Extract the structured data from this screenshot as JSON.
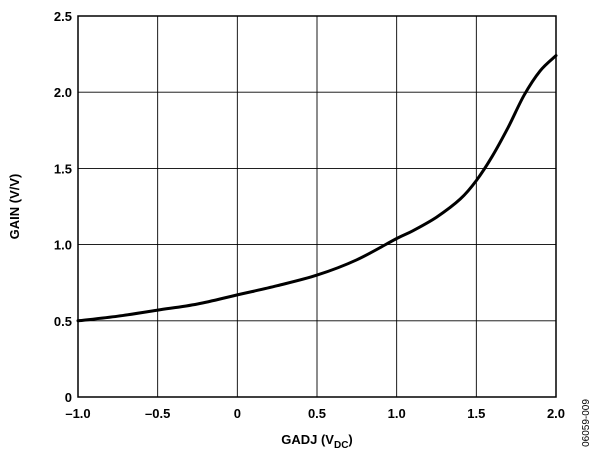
{
  "chart_data": {
    "type": "line",
    "title": "",
    "xlabel": {
      "main": "GADJ (V",
      "sub": "DC",
      "close": ")"
    },
    "ylabel": "GAIN (V/V)",
    "xlim": [
      -1.0,
      2.0
    ],
    "ylim": [
      0,
      2.5
    ],
    "grid": true,
    "legend": "none",
    "xticks": [
      -1.0,
      -0.5,
      0,
      0.5,
      1.0,
      1.5,
      2.0
    ],
    "xtick_labels": [
      "–1.0",
      "–0.5",
      "0",
      "0.5",
      "1.0",
      "1.5",
      "2.0"
    ],
    "yticks": [
      0,
      0.5,
      1.0,
      1.5,
      2.0,
      2.5
    ],
    "ytick_labels": [
      "0",
      "0.5",
      "1.0",
      "1.5",
      "2.0",
      "2.5"
    ],
    "series": [
      {
        "x": [
          -1.0,
          -0.75,
          -0.5,
          -0.25,
          0.0,
          0.25,
          0.5,
          0.75,
          1.0,
          1.1,
          1.25,
          1.4,
          1.5,
          1.6,
          1.7,
          1.8,
          1.9,
          2.0
        ],
        "y": [
          0.5,
          0.53,
          0.57,
          0.61,
          0.67,
          0.73,
          0.8,
          0.9,
          1.04,
          1.09,
          1.18,
          1.3,
          1.42,
          1.58,
          1.77,
          1.98,
          2.14,
          2.24
        ],
        "color": "#000000"
      }
    ],
    "figure_id": "06059-009"
  }
}
